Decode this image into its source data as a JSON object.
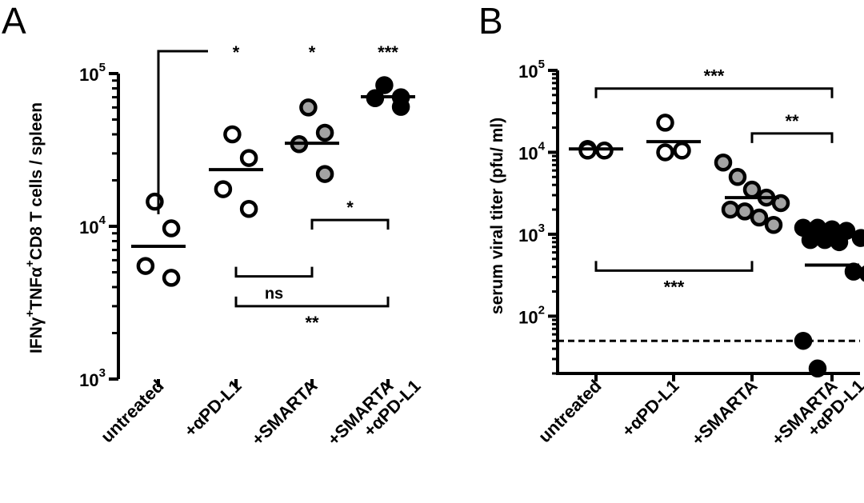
{
  "colors": {
    "ink": "#000000",
    "open_fill": "#ffffff",
    "grey_fill": "#a3a3a3",
    "black_fill": "#000000",
    "background": "#ffffff"
  },
  "chart_data": [
    {
      "type": "scatter",
      "panel_label": "A",
      "ylabel": {
        "parts": [
          {
            "t": "IFN"
          },
          {
            "t": "γ"
          },
          {
            "t": "+",
            "sup": true
          },
          {
            "t": "TNF"
          },
          {
            "t": "α"
          },
          {
            "t": "+",
            "sup": true
          },
          {
            "t": "CD8 T cells / spleen"
          }
        ]
      },
      "yscale": "log",
      "ylim": [
        1000,
        100000
      ],
      "yticks": [
        {
          "value": 1000,
          "base": "10",
          "exp": "3"
        },
        {
          "value": 10000,
          "base": "10",
          "exp": "4"
        },
        {
          "value": 100000,
          "base": "10",
          "exp": "5"
        }
      ],
      "categories": [
        {
          "lines": [
            "untreated"
          ]
        },
        {
          "lines": [
            "+αPD-L1"
          ]
        },
        {
          "lines": [
            "+SMARTA"
          ]
        },
        {
          "lines": [
            "+SMARTA",
            "+αPD-L1"
          ]
        }
      ],
      "series": [
        {
          "category": 0,
          "marker": "open",
          "values": [
            14500,
            9700,
            5500,
            4600
          ],
          "mean": 7400
        },
        {
          "category": 1,
          "marker": "open",
          "values": [
            40000,
            28000,
            17500,
            13000
          ],
          "mean": 23500
        },
        {
          "category": 2,
          "marker": "grey",
          "values": [
            60000,
            41000,
            34500,
            22000
          ],
          "mean": 35000
        },
        {
          "category": 3,
          "marker": "black",
          "values": [
            84000,
            70000,
            69000,
            60500
          ],
          "mean": 70500
        }
      ],
      "significance": [
        {
          "type": "corner",
          "from": 0,
          "to_label": 1,
          "y": 100000,
          "label": "*"
        },
        {
          "type": "label_only",
          "at": 1,
          "y": 100000,
          "label": "*"
        },
        {
          "type": "label_only",
          "at": 2,
          "y": 100000,
          "label": "*"
        },
        {
          "type": "label_only",
          "at": 3,
          "y": 100000,
          "label": "***"
        },
        {
          "type": "bracket_down",
          "from": 2,
          "to": 3,
          "y": 11000,
          "label": "*"
        },
        {
          "type": "bracket_up",
          "from": 1,
          "to": 2,
          "y": 4700,
          "label": "ns"
        },
        {
          "type": "bracket_up",
          "from": 1,
          "to": 3,
          "y": 3000,
          "label": "**"
        }
      ]
    },
    {
      "type": "scatter",
      "panel_label": "B",
      "ylabel": {
        "parts": [
          {
            "t": "serum viral titer (pfu/ ml)"
          }
        ]
      },
      "yscale": "log",
      "ylim": [
        20,
        100000
      ],
      "yticks": [
        {
          "value": 100,
          "base": "10",
          "exp": "2"
        },
        {
          "value": 1000,
          "base": "10",
          "exp": "3"
        },
        {
          "value": 10000,
          "base": "10",
          "exp": "4"
        },
        {
          "value": 100000,
          "base": "10",
          "exp": "5"
        }
      ],
      "detection_limit": 50,
      "categories": [
        {
          "lines": [
            "untreated"
          ]
        },
        {
          "lines": [
            "+αPD-L1"
          ]
        },
        {
          "lines": [
            "+SMARTA"
          ]
        },
        {
          "lines": [
            "+SMARTA",
            "+αPD-L1"
          ]
        }
      ],
      "series": [
        {
          "category": 0,
          "marker": "open",
          "values": [
            11000,
            10500,
            10500
          ],
          "mean": 11000
        },
        {
          "category": 1,
          "marker": "open",
          "values": [
            23000,
            10500,
            10000
          ],
          "mean": 13500
        },
        {
          "category": 2,
          "marker": "grey",
          "values": [
            7500,
            5000,
            3500,
            2800,
            2400,
            2000,
            1900,
            1600,
            1300
          ],
          "mean": 2800
        },
        {
          "category": 3,
          "marker": "black",
          "values": [
            1200,
            1200,
            1150,
            1100,
            900,
            850,
            850,
            800,
            350,
            330,
            50,
            23
          ],
          "mean": 420
        }
      ],
      "significance": [
        {
          "type": "bracket_down",
          "from": 0,
          "to": 3,
          "y": 60000,
          "label": "***"
        },
        {
          "type": "bracket_down",
          "from": 2,
          "to": 3,
          "y": 17000,
          "label": "**"
        },
        {
          "type": "bracket_up",
          "from": 0,
          "to": 2,
          "y": 360,
          "label": "***"
        }
      ]
    }
  ]
}
